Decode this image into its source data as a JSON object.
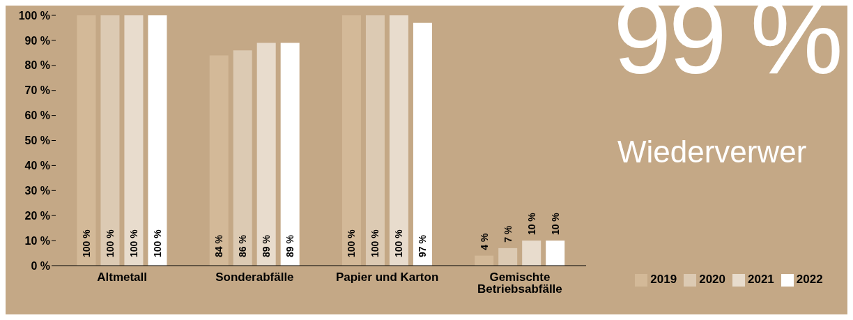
{
  "chart_data": {
    "type": "bar",
    "categories": [
      "Altmetall",
      "Sonderabfälle",
      "Papier und Karton",
      "Gemischte Betriebsabfälle"
    ],
    "series": [
      {
        "name": "2019",
        "color": "#d3b998",
        "values": [
          100,
          84,
          100,
          4
        ],
        "value_labels": [
          "100 %",
          "84 %",
          "100 %",
          "4 %"
        ]
      },
      {
        "name": "2020",
        "color": "#dccab3",
        "values": [
          100,
          86,
          100,
          7
        ],
        "value_labels": [
          "100 %",
          "86 %",
          "100 %",
          "7 %"
        ]
      },
      {
        "name": "2021",
        "color": "#e8dccd",
        "values": [
          100,
          89,
          100,
          10
        ],
        "value_labels": [
          "100 %",
          "89 %",
          "100 %",
          "10 %"
        ]
      },
      {
        "name": "2022",
        "color": "#ffffff",
        "values": [
          100,
          89,
          97,
          10
        ],
        "value_labels": [
          "100 %",
          "89 %",
          "97 %",
          "10 %"
        ]
      }
    ],
    "ylim": [
      0,
      100
    ],
    "yticks": [
      {
        "value": 0,
        "label": "0 %"
      },
      {
        "value": 10,
        "label": "10 %"
      },
      {
        "value": 20,
        "label": "20 %"
      },
      {
        "value": 30,
        "label": "30 %"
      },
      {
        "value": 40,
        "label": "40 %"
      },
      {
        "value": 50,
        "label": "50 %"
      },
      {
        "value": 60,
        "label": "60 %"
      },
      {
        "value": 70,
        "label": "70 %"
      },
      {
        "value": 80,
        "label": "80 %"
      },
      {
        "value": 90,
        "label": "90 %"
      },
      {
        "value": 100,
        "label": "100 %"
      }
    ],
    "grid": false,
    "legend": "bottom right",
    "annotations": [
      "99 %",
      "Wiederverwer"
    ]
  }
}
